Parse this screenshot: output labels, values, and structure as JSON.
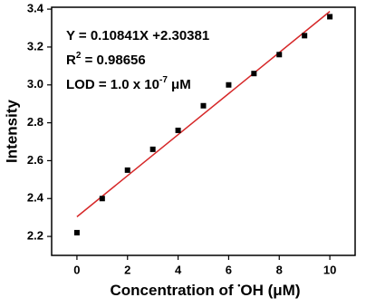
{
  "chart_data": {
    "type": "scatter",
    "x_label": [
      "Concentration of ",
      "•",
      "OH (μM)"
    ],
    "y_label": "Intensity",
    "annotations": [
      {
        "parts": [
          "Y = 0.10841X +2.30381"
        ]
      },
      {
        "parts": [
          "R",
          "2",
          " = 0.98656"
        ]
      },
      {
        "parts": [
          "LOD = 1.0 x 10",
          "-7",
          " μM"
        ]
      }
    ],
    "points": {
      "x": [
        0,
        1,
        2,
        3,
        4,
        5,
        6,
        7,
        8,
        9,
        10
      ],
      "values": [
        2.22,
        2.4,
        2.55,
        2.66,
        2.76,
        2.89,
        3.0,
        3.06,
        3.16,
        3.26,
        3.36
      ],
      "color": "#000000"
    },
    "fit": {
      "x": [
        0,
        10
      ],
      "values": [
        2.30381,
        3.38791
      ],
      "color": "#d62728"
    },
    "xlim": [
      -1,
      11
    ],
    "ylim": [
      2.1,
      3.41
    ],
    "xticks": [
      0,
      2,
      4,
      6,
      8,
      10
    ],
    "yticks": [
      2.2,
      2.4,
      {
        "value": 2.6,
        "label": "2.6"
      },
      2.8,
      {
        "value": 3.0,
        "label": "3.0"
      },
      3.2,
      3.4
    ]
  }
}
